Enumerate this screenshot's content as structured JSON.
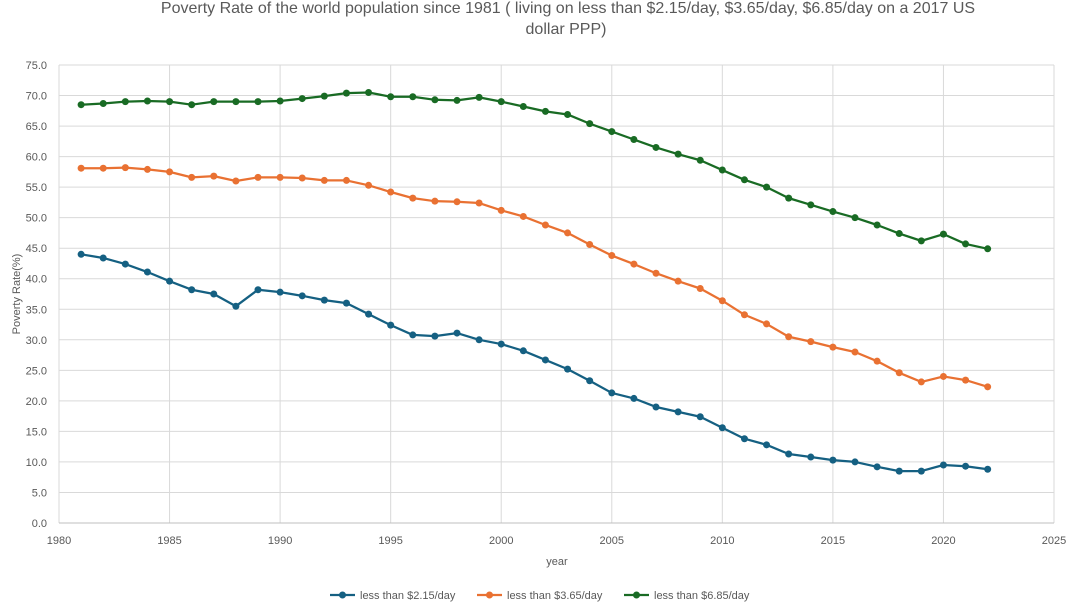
{
  "chart_data": {
    "type": "line",
    "title": "Poverty Rate of the world population since 1981 ( living on less than $2.15/day, $3.65/day, $6.85/day on a 2017 US dollar PPP)",
    "title_lines": [
      "Poverty Rate of the world population since 1981 ( living on less than $2.15/day, $3.65/day, $6.85/day on a 2017 US",
      "dollar PPP)"
    ],
    "xlabel": "year",
    "ylabel": "Poverty Rate(%)",
    "xlim": [
      1980,
      2025
    ],
    "ylim": [
      0,
      75
    ],
    "xticks": [
      1980,
      1985,
      1990,
      1995,
      2000,
      2005,
      2010,
      2015,
      2020,
      2025
    ],
    "yticks": [
      "0.0",
      "5.0",
      "10.0",
      "15.0",
      "20.0",
      "25.0",
      "30.0",
      "35.0",
      "40.0",
      "45.0",
      "50.0",
      "55.0",
      "60.0",
      "65.0",
      "70.0",
      "75.0"
    ],
    "grid": true,
    "legend_position": "bottom",
    "x": [
      1981,
      1982,
      1983,
      1984,
      1985,
      1986,
      1987,
      1988,
      1989,
      1990,
      1991,
      1992,
      1993,
      1994,
      1995,
      1996,
      1997,
      1998,
      1999,
      2000,
      2001,
      2002,
      2003,
      2004,
      2005,
      2006,
      2007,
      2008,
      2009,
      2010,
      2011,
      2012,
      2013,
      2014,
      2015,
      2016,
      2017,
      2018,
      2019,
      2020,
      2021,
      2022
    ],
    "series": [
      {
        "name": "less than $2.15/day",
        "color": "#156082",
        "values": [
          44.0,
          43.4,
          42.4,
          41.1,
          39.6,
          38.2,
          37.5,
          35.5,
          38.2,
          37.8,
          37.2,
          36.5,
          36.0,
          34.2,
          32.4,
          30.8,
          30.6,
          31.1,
          30.0,
          29.3,
          28.2,
          26.7,
          25.2,
          23.3,
          21.3,
          20.4,
          19.0,
          18.2,
          17.4,
          15.6,
          13.8,
          12.8,
          11.3,
          10.8,
          10.3,
          10.0,
          9.2,
          8.5,
          8.5,
          9.5,
          9.3,
          8.8
        ]
      },
      {
        "name": "less than $3.65/day",
        "color": "#E97132",
        "values": [
          58.1,
          58.1,
          58.2,
          57.9,
          57.5,
          56.6,
          56.8,
          56.0,
          56.6,
          56.6,
          56.5,
          56.1,
          56.1,
          55.3,
          54.2,
          53.2,
          52.7,
          52.6,
          52.4,
          51.2,
          50.2,
          48.8,
          47.5,
          45.6,
          43.8,
          42.4,
          40.9,
          39.6,
          38.4,
          36.4,
          34.1,
          32.6,
          30.5,
          29.7,
          28.8,
          28.0,
          26.5,
          24.6,
          23.1,
          24.0,
          23.4,
          22.3
        ]
      },
      {
        "name": "less than $6.85/day",
        "color": "#196B24",
        "values": [
          68.5,
          68.7,
          69.0,
          69.1,
          69.0,
          68.5,
          69.0,
          69.0,
          69.0,
          69.1,
          69.5,
          69.9,
          70.4,
          70.5,
          69.8,
          69.8,
          69.3,
          69.2,
          69.7,
          69.0,
          68.2,
          67.4,
          66.9,
          65.4,
          64.1,
          62.8,
          61.5,
          60.4,
          59.4,
          57.8,
          56.2,
          55.0,
          53.2,
          52.1,
          51.0,
          50.0,
          48.8,
          47.4,
          46.2,
          47.3,
          45.7,
          44.9
        ]
      }
    ]
  }
}
